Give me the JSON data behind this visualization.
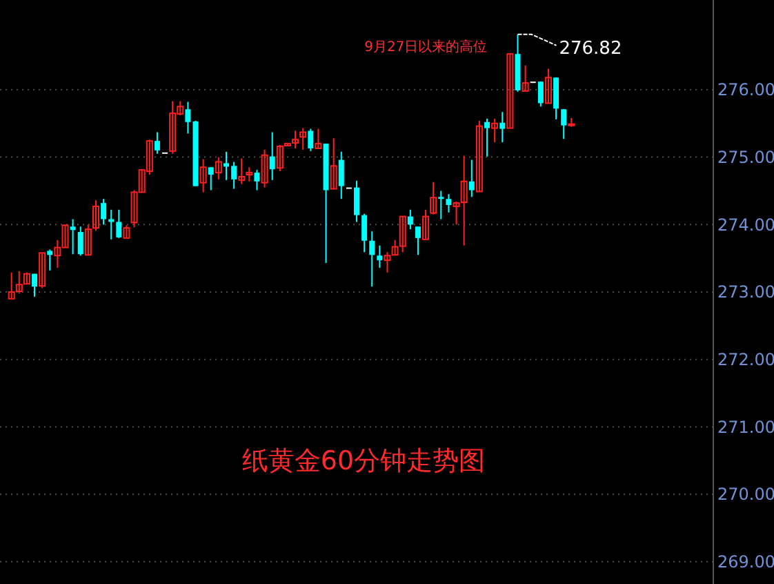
{
  "chart_data": {
    "type": "candlestick",
    "title": "纸黄金60分钟走势图",
    "categories": [
      null,
      null,
      null,
      null,
      null,
      null,
      null,
      null,
      null,
      null,
      null,
      null,
      null,
      null,
      null,
      null,
      null,
      null,
      null,
      null,
      null,
      null,
      null,
      null,
      null,
      null,
      null,
      null,
      null,
      null,
      null,
      null,
      null,
      null,
      null,
      null,
      null,
      null,
      null,
      null,
      null,
      null,
      null,
      null,
      null,
      null,
      null,
      null,
      null,
      null,
      null,
      null,
      null,
      null,
      null,
      null,
      null,
      null,
      null,
      null,
      null,
      null,
      null,
      null,
      null,
      null,
      null,
      null,
      null,
      null,
      null,
      null,
      null,
      null,
      null,
      null,
      null,
      null,
      null,
      null,
      null,
      null,
      null,
      null,
      null,
      null,
      null,
      null,
      null,
      null,
      null,
      null,
      null
    ],
    "ohlc": [
      null,
      [
        272.9,
        273.29,
        272.9,
        273.0
      ],
      [
        273.01,
        273.31,
        272.98,
        273.11
      ],
      [
        273.12,
        273.29,
        273.12,
        273.27
      ],
      [
        273.27,
        273.27,
        272.93,
        273.08
      ],
      [
        273.09,
        273.58,
        273.06,
        273.58
      ],
      [
        273.61,
        273.63,
        273.32,
        273.55
      ],
      [
        273.54,
        273.77,
        273.36,
        273.66
      ],
      [
        273.66,
        274.0,
        273.66,
        273.99
      ],
      [
        273.97,
        274.08,
        273.56,
        273.92
      ],
      [
        273.89,
        273.97,
        273.54,
        273.56
      ],
      [
        273.55,
        274.0,
        273.55,
        273.93
      ],
      [
        273.95,
        274.36,
        273.91,
        274.27
      ],
      [
        274.32,
        274.38,
        274.0,
        274.08
      ],
      [
        274.08,
        274.22,
        273.78,
        274.04
      ],
      [
        274.04,
        274.22,
        273.8,
        273.81
      ],
      [
        273.8,
        273.99,
        273.8,
        273.95
      ],
      [
        274.03,
        274.51,
        273.96,
        274.48
      ],
      [
        274.48,
        274.82,
        274.48,
        274.81
      ],
      [
        274.79,
        275.26,
        274.74,
        275.24
      ],
      [
        275.24,
        275.37,
        275.05,
        275.1
      ],
      [
        275.07,
        275.07,
        275.07,
        275.07
      ],
      [
        275.09,
        275.83,
        275.05,
        275.65
      ],
      [
        275.64,
        275.83,
        275.62,
        275.75
      ],
      [
        275.71,
        275.82,
        275.35,
        275.52
      ],
      [
        275.53,
        275.54,
        274.57,
        274.57
      ],
      [
        274.62,
        274.97,
        274.48,
        274.85
      ],
      [
        274.85,
        274.85,
        274.51,
        274.74
      ],
      [
        274.77,
        275.0,
        274.67,
        274.93
      ],
      [
        274.91,
        275.08,
        274.66,
        274.86
      ],
      [
        274.87,
        274.93,
        274.53,
        274.67
      ],
      [
        274.66,
        274.98,
        274.6,
        274.71
      ],
      [
        274.74,
        274.85,
        274.64,
        274.77
      ],
      [
        274.77,
        274.81,
        274.51,
        274.64
      ],
      [
        274.62,
        275.11,
        274.55,
        275.03
      ],
      [
        275.01,
        275.37,
        274.66,
        274.82
      ],
      [
        274.84,
        275.18,
        274.79,
        275.16
      ],
      [
        275.17,
        275.2,
        275.17,
        275.2
      ],
      [
        275.21,
        275.39,
        275.13,
        275.26
      ],
      [
        275.3,
        275.43,
        275.11,
        275.37
      ],
      [
        275.39,
        275.42,
        275.09,
        275.13
      ],
      [
        275.13,
        275.42,
        275.13,
        275.2
      ],
      [
        275.2,
        275.2,
        273.43,
        274.51
      ],
      [
        274.53,
        275.28,
        274.53,
        274.87
      ],
      [
        274.96,
        275.08,
        274.38,
        274.57
      ],
      [
        274.55,
        274.55,
        274.55,
        274.55
      ],
      [
        274.55,
        274.65,
        274.04,
        274.14
      ],
      [
        274.14,
        274.16,
        273.59,
        273.76
      ],
      [
        273.76,
        273.9,
        273.08,
        273.55
      ],
      [
        273.54,
        273.69,
        273.36,
        273.47
      ],
      [
        273.47,
        273.59,
        273.29,
        273.54
      ],
      [
        273.55,
        273.77,
        273.55,
        273.67
      ],
      [
        273.68,
        274.12,
        273.59,
        274.12
      ],
      [
        274.12,
        274.22,
        273.93,
        274.0
      ],
      [
        273.97,
        273.97,
        273.55,
        273.8
      ],
      [
        273.78,
        274.22,
        273.78,
        274.12
      ],
      [
        274.17,
        274.63,
        274.15,
        274.4
      ],
      [
        274.41,
        274.5,
        274.08,
        274.38
      ],
      [
        274.38,
        274.45,
        274.18,
        274.29
      ],
      [
        274.27,
        274.34,
        274.0,
        274.32
      ],
      [
        274.33,
        275.02,
        273.69,
        274.64
      ],
      [
        274.64,
        274.96,
        274.41,
        274.51
      ],
      [
        274.49,
        275.54,
        274.49,
        275.46
      ],
      [
        275.52,
        275.57,
        275.01,
        275.43
      ],
      [
        275.43,
        275.57,
        275.22,
        275.5
      ],
      [
        275.51,
        275.67,
        275.22,
        275.42
      ],
      [
        275.43,
        276.53,
        275.43,
        276.53
      ],
      [
        276.53,
        276.82,
        275.97,
        275.99
      ],
      [
        275.98,
        276.36,
        275.98,
        276.1
      ],
      [
        276.12,
        276.12,
        276.12,
        276.12
      ],
      [
        276.12,
        276.12,
        275.75,
        275.8
      ],
      [
        275.8,
        276.31,
        275.8,
        276.18
      ],
      [
        276.18,
        276.18,
        275.56,
        275.72
      ],
      [
        275.71,
        275.71,
        275.27,
        275.47
      ],
      [
        275.47,
        275.58,
        275.45,
        275.49
      ],
      null,
      null,
      null,
      null,
      null,
      null,
      null,
      null,
      null,
      null,
      null,
      null,
      null,
      null,
      null,
      null,
      null,
      null
    ],
    "ylim": [
      268.67,
      277.33
    ],
    "yticks": [
      {
        "value": 269,
        "label": "269.00"
      },
      {
        "value": 270,
        "label": "270.00"
      },
      {
        "value": 271,
        "label": "271.00"
      },
      {
        "value": 272,
        "label": "272.00"
      },
      {
        "value": 273,
        "label": "273.00"
      },
      {
        "value": 274,
        "label": "274.00"
      },
      {
        "value": 275,
        "label": "275.00"
      },
      {
        "value": 276,
        "label": "276.00"
      }
    ],
    "grid": "y",
    "annotations": [
      "9月27日以来的高位",
      "276.82"
    ]
  }
}
